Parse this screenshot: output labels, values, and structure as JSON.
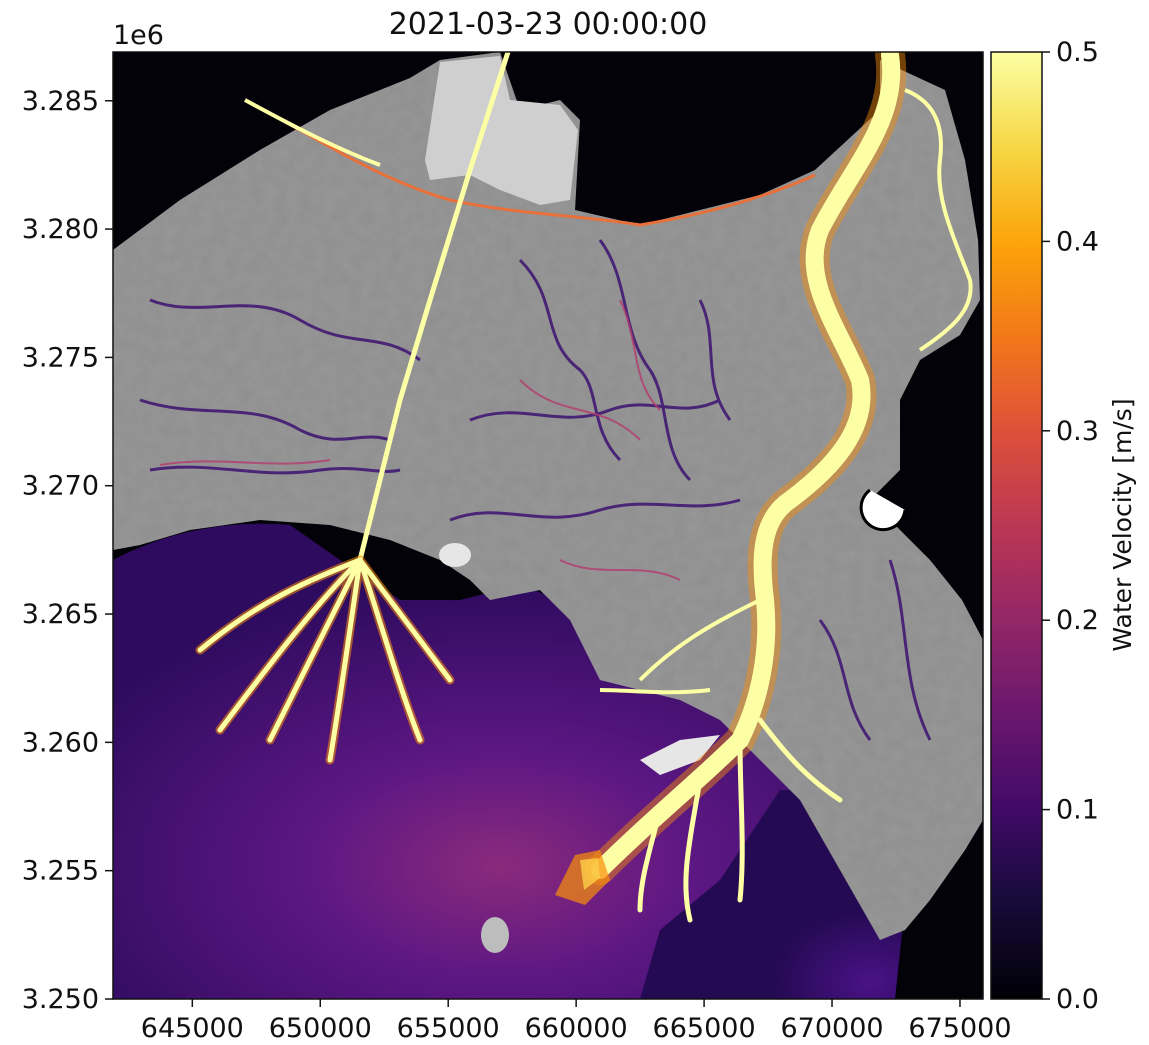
{
  "chart_data": {
    "type": "heatmap",
    "title": "2021-03-23 00:00:00",
    "x_ticks": [
      "645000",
      "650000",
      "655000",
      "660000",
      "665000",
      "670000",
      "675000"
    ],
    "x_tick_values": [
      645000,
      650000,
      655000,
      660000,
      665000,
      670000,
      675000
    ],
    "xlim": [
      641900,
      675900
    ],
    "y_offset_label": "1e6",
    "y_ticks": [
      "3.250",
      "3.255",
      "3.260",
      "3.265",
      "3.270",
      "3.275",
      "3.280",
      "3.285"
    ],
    "y_tick_values": [
      3.25,
      3.255,
      3.26,
      3.265,
      3.27,
      3.275,
      3.28,
      3.285
    ],
    "ylim": [
      3.25,
      3.2869
    ],
    "grid": false,
    "colorbar": {
      "label": "Water Velocity [m/s]",
      "colormap": "inferno",
      "range": [
        0.0,
        0.5
      ],
      "ticks": [
        "0.0",
        "0.1",
        "0.2",
        "0.3",
        "0.4",
        "0.5"
      ],
      "tick_values": [
        0.0,
        0.1,
        0.2,
        0.3,
        0.4,
        0.5
      ]
    },
    "colors": {
      "land": "#8c8c8c",
      "open_water": "#000004",
      "gulf_low": "#3b0f70",
      "gulf_mid": "#6a1a7a",
      "channel_fast": "#fcffa4",
      "channel_mid": "#f98e09"
    }
  }
}
